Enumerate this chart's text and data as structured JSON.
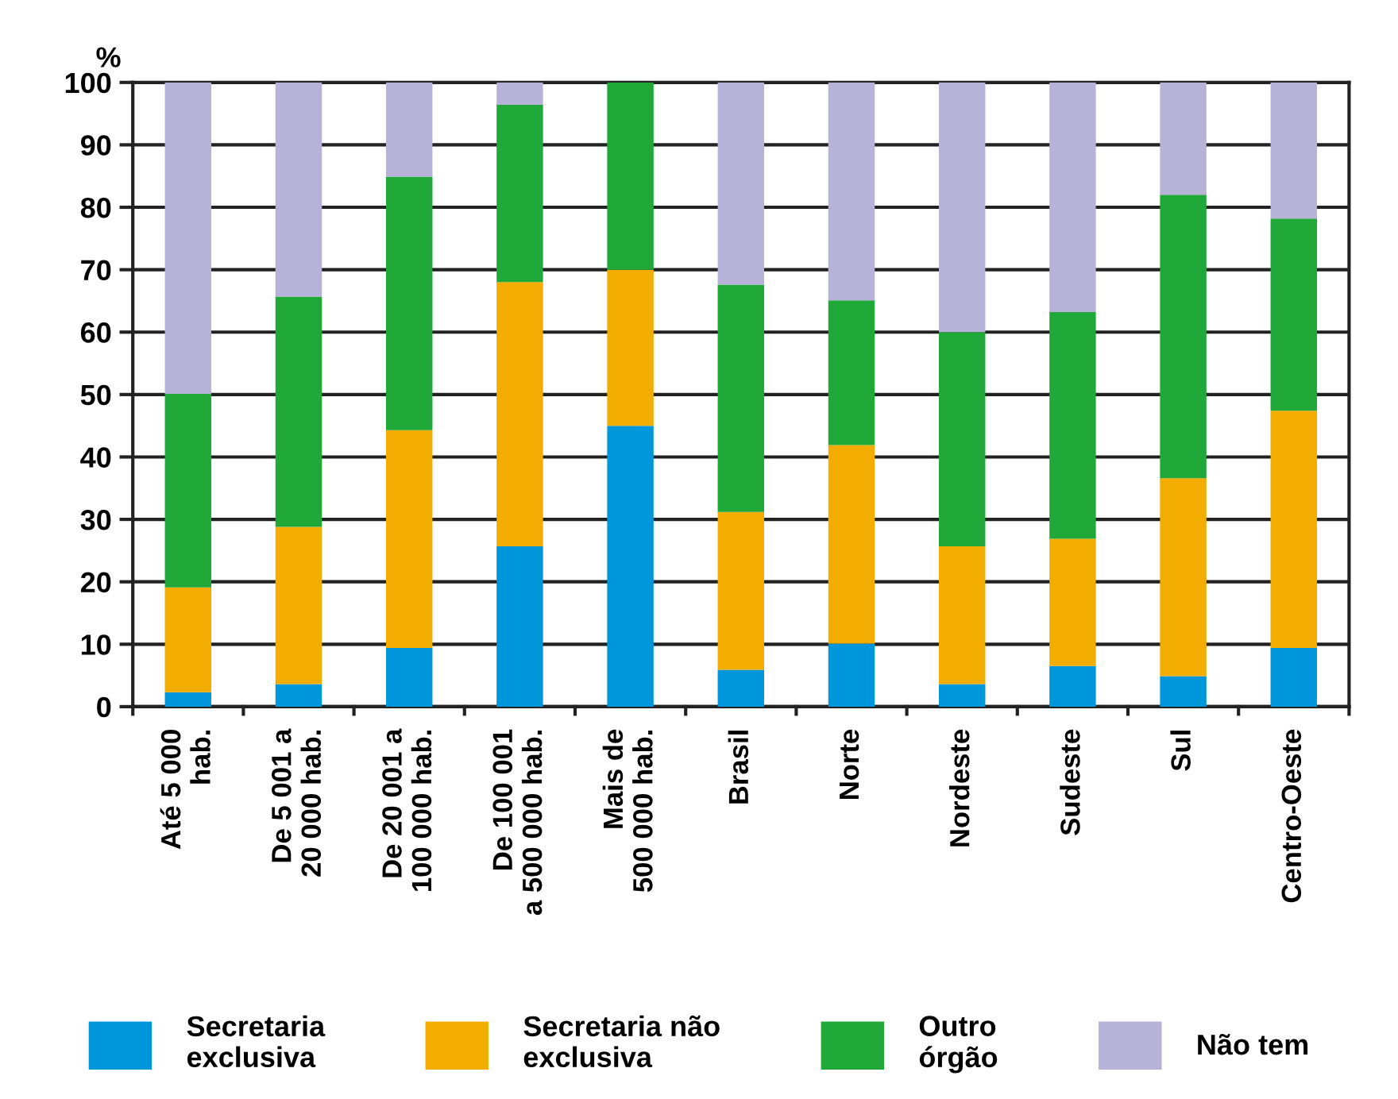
{
  "chart_data": {
    "type": "bar",
    "stacked": true,
    "ylabel": "%",
    "categories": [
      "Até 5 000\nhab.",
      "De 5 001 a\n20 000 hab.",
      "De 20 001 a\n100 000 hab.",
      "De 100 001\na 500 000 hab.",
      "Mais de\n500 000 hab.",
      "Brasil",
      "Norte",
      "Nordeste",
      "Sudeste",
      "Sul",
      "Centro-Oeste"
    ],
    "series": [
      {
        "name": "Secretaria\nexclusiva",
        "color": "#0096dc",
        "values": [
          2.3,
          3.6,
          9.4,
          25.7,
          45.0,
          5.9,
          10.1,
          3.6,
          6.5,
          4.9,
          9.4
        ]
      },
      {
        "name": "Secretaria não\nexclusiva",
        "color": "#f2ad00",
        "values": [
          16.8,
          25.2,
          34.9,
          42.3,
          25.0,
          25.3,
          31.8,
          22.1,
          20.4,
          31.7,
          38.0
        ]
      },
      {
        "name": "Outro\nórgão",
        "color": "#20a838",
        "values": [
          31.0,
          36.9,
          40.6,
          28.4,
          30.0,
          36.4,
          23.2,
          34.3,
          36.3,
          45.4,
          30.8
        ]
      },
      {
        "name": "Não tem",
        "color": "#b7b2d7",
        "values": [
          49.9,
          34.3,
          15.1,
          3.6,
          0,
          32.4,
          34.9,
          40.0,
          36.8,
          18.0,
          21.8
        ]
      }
    ],
    "ylim": [
      0,
      100
    ],
    "yticks": [
      0,
      10,
      20,
      30,
      40,
      50,
      60,
      70,
      80,
      90,
      100
    ],
    "grid": "y",
    "legend": "bottom"
  }
}
